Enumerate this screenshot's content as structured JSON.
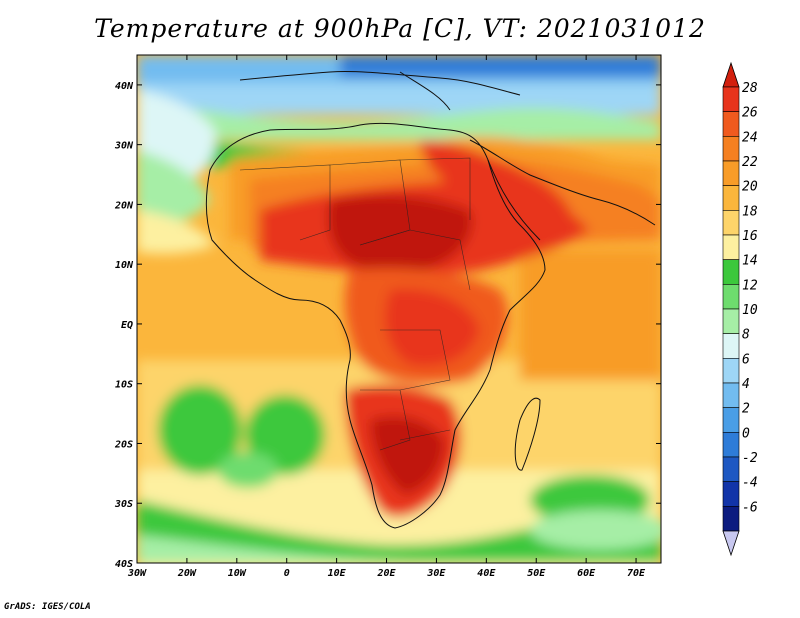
{
  "title": "Temperature at 900hPa [C], VT: 2021031012",
  "credit": "GrADS: IGES/COLA",
  "map": {
    "lon_range": [
      -30,
      75
    ],
    "lat_range": [
      -40,
      45
    ],
    "lon_ticks": [
      "30W",
      "20W",
      "10W",
      "0",
      "10E",
      "20E",
      "30E",
      "40E",
      "50E",
      "60E",
      "70E"
    ],
    "lat_ticks": [
      "40N",
      "30N",
      "20N",
      "10N",
      "EQ",
      "10S",
      "20S",
      "30S",
      "40S"
    ],
    "variable": "Temperature at 900hPa",
    "units": "C"
  },
  "colorbar": {
    "labels": [
      "28",
      "26",
      "24",
      "22",
      "20",
      "18",
      "16",
      "14",
      "12",
      "10",
      "8",
      "6",
      "4",
      "2",
      "0",
      "-2",
      "-4",
      "-6"
    ],
    "colors": [
      "#e8341c",
      "#f05a1e",
      "#f58021",
      "#f89c28",
      "#fbb63c",
      "#fdd46a",
      "#fdf0a0",
      "#3cc83c",
      "#6edc6e",
      "#a6eea6",
      "#ddf6f6",
      "#9ed6f6",
      "#72bcf0",
      "#4a9ee6",
      "#2e7cd8",
      "#1e58c2",
      "#1234a8",
      "#0c1c80"
    ],
    "top_arrow_color": "#d2200e",
    "bottom_arrow_color": "#c8c8f0"
  },
  "palette": {
    "ocean_cool": "#9ed6f6",
    "ocean_mild": "#fdf0a0",
    "hot": "#d2200e",
    "very_hot": "#c01810"
  }
}
